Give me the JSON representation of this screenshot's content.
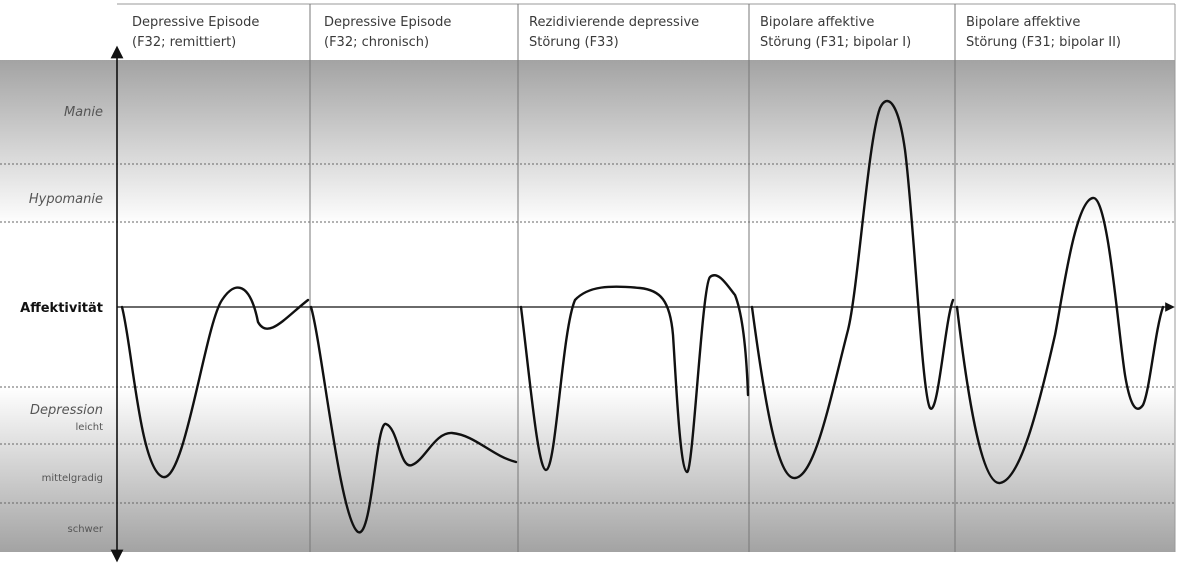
{
  "columns": [
    {
      "line1": "Depressive Episode",
      "line2": "(F32; remittiert)"
    },
    {
      "line1": "Depressive Episode",
      "line2": "(F32; chronisch)"
    },
    {
      "line1": "Rezidivierende depressive",
      "line2": "Störung (F33)"
    },
    {
      "line1": "Bipolare affektive",
      "line2": "Störung (F31; bipolar I)"
    },
    {
      "line1": "Bipolare affektive",
      "line2": "Störung (F31; bipolar II)"
    }
  ],
  "rows": {
    "manie": "Manie",
    "hypomanie": "Hypomanie",
    "axis": "Affektivität",
    "depression": "Depression",
    "leicht": "leicht",
    "mittelgradig": "mittelgradig",
    "schwer": "schwer"
  },
  "colors": {
    "band_dark": "#9a9a9a",
    "band_light": "#f4f4f4",
    "curve": "#111111",
    "grid": "#777777"
  }
}
